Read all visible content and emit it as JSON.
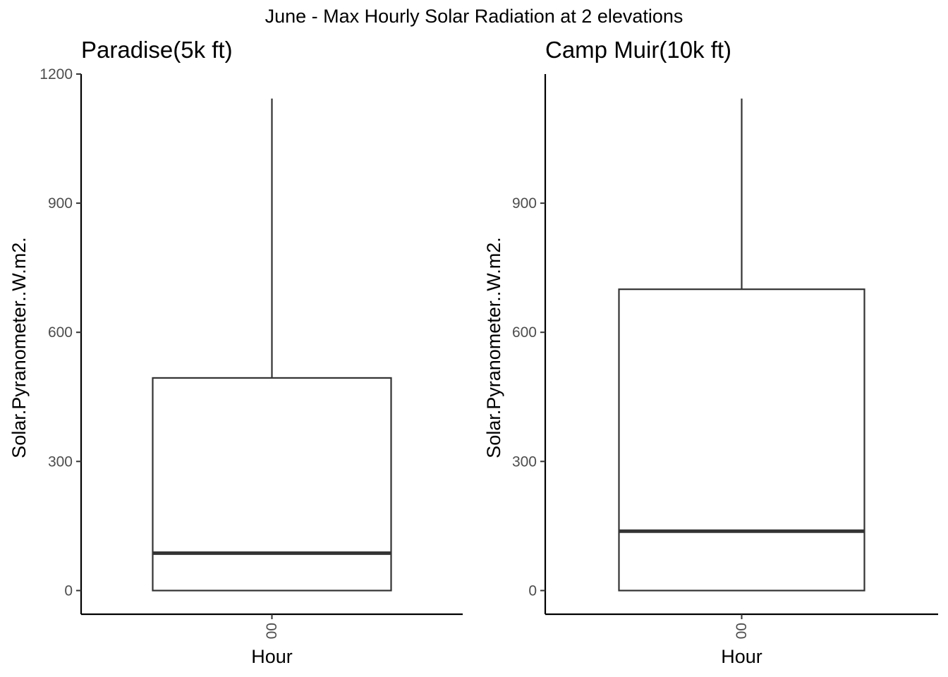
{
  "figure": {
    "title": "June - Max Hourly Solar Radiation at 2 elevations"
  },
  "chart_data": [
    {
      "type": "boxplot",
      "title": "Paradise(5k ft)",
      "xlabel": "Hour",
      "ylabel": "Solar.Pyranometer..W.m2.",
      "categories": [
        "00"
      ],
      "ylim": [
        -55,
        1200
      ],
      "yticks": [
        0,
        300,
        600,
        900,
        1200
      ],
      "grid": false,
      "series": [
        {
          "category": "00",
          "min": 0,
          "q1": 0,
          "median": 87,
          "q3": 494,
          "max": 1143
        }
      ]
    },
    {
      "type": "boxplot",
      "title": "Camp Muir(10k ft)",
      "xlabel": "Hour",
      "ylabel": "Solar.Pyranometer..W.m2.",
      "categories": [
        "00"
      ],
      "ylim": [
        -55,
        1200
      ],
      "yticks": [
        0,
        300,
        600,
        900
      ],
      "grid": false,
      "series": [
        {
          "category": "00",
          "min": 0,
          "q1": 0,
          "median": 138,
          "q3": 700,
          "max": 1143
        }
      ]
    }
  ]
}
